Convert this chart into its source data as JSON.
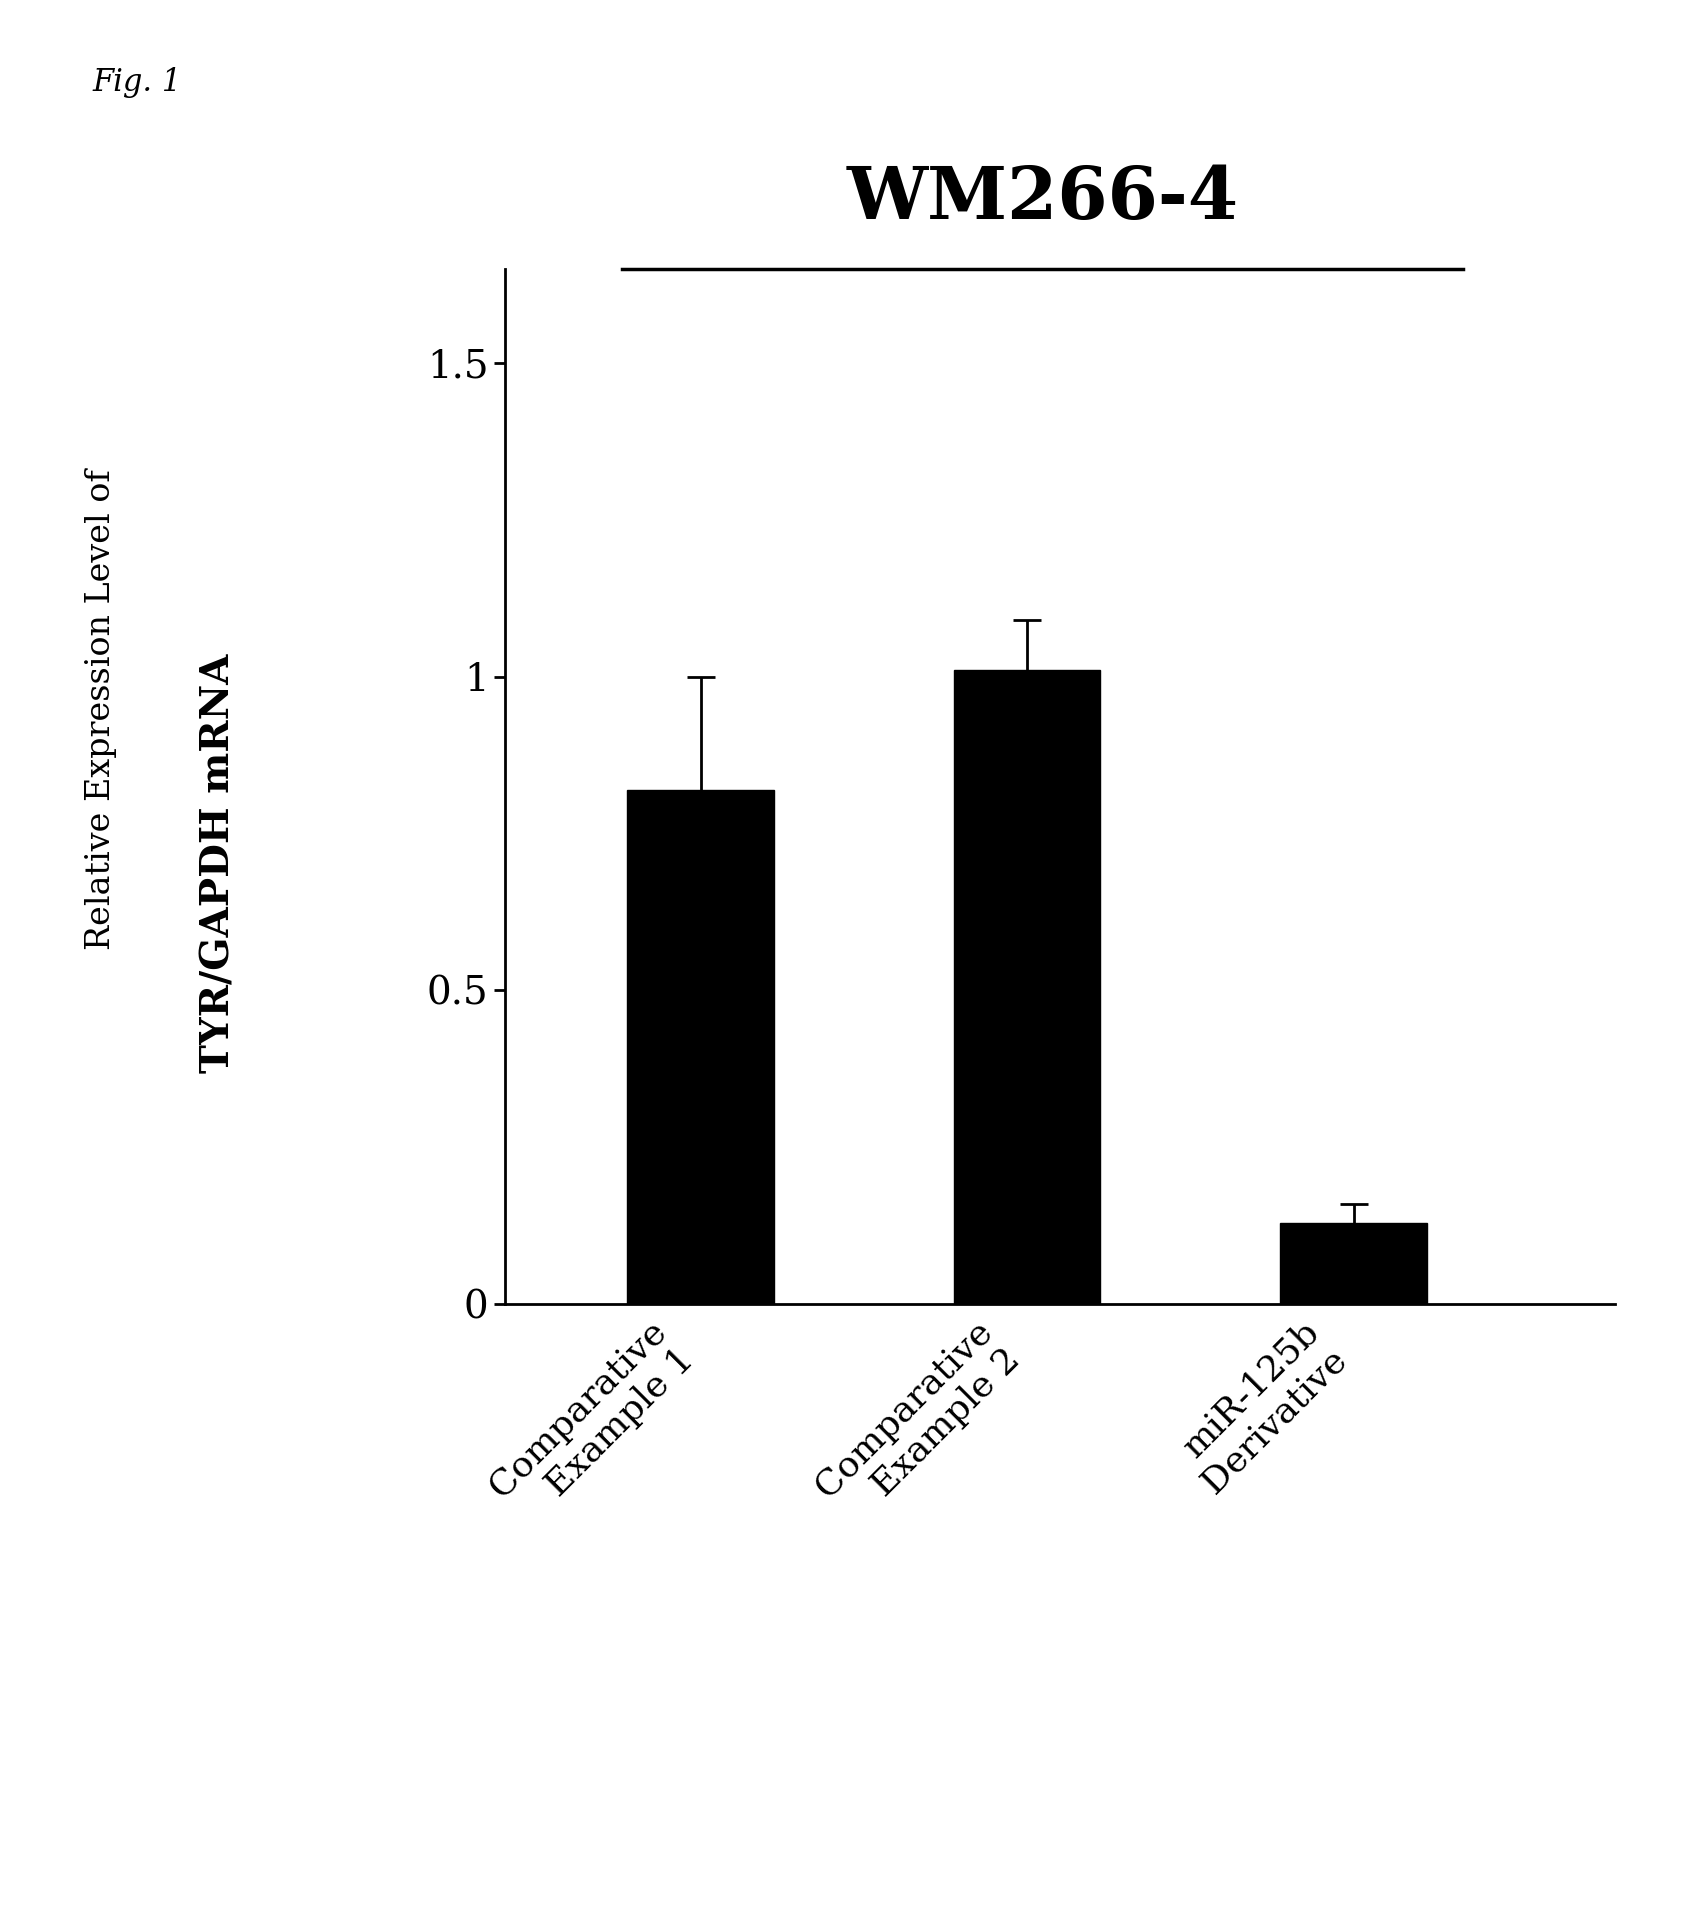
{
  "title": "WM266-4",
  "fig_label": "Fig. 1",
  "categories": [
    "Comparative\nExample 1",
    "Comparative\nExample 2",
    "miR-125b\nDerivative"
  ],
  "values": [
    0.82,
    1.01,
    0.13
  ],
  "errors": [
    0.18,
    0.08,
    0.03
  ],
  "bar_color": "#000000",
  "bar_width": 0.45,
  "ylim": [
    0,
    1.65
  ],
  "yticks": [
    0,
    0.5,
    1.0,
    1.5
  ],
  "ytick_labels": [
    "0",
    "0.5",
    "1",
    "1.5"
  ],
  "ylabel_top": "Relative Expression Level of",
  "ylabel_bottom": "TYR/GAPDH mRNA",
  "background_color": "#ffffff",
  "title_fontsize": 52,
  "ylabel_top_fontsize": 24,
  "ylabel_bottom_fontsize": 28,
  "tick_fontsize": 28,
  "xlabel_fontsize": 26,
  "fig_label_fontsize": 22,
  "bar_positions": [
    1,
    2,
    3
  ]
}
